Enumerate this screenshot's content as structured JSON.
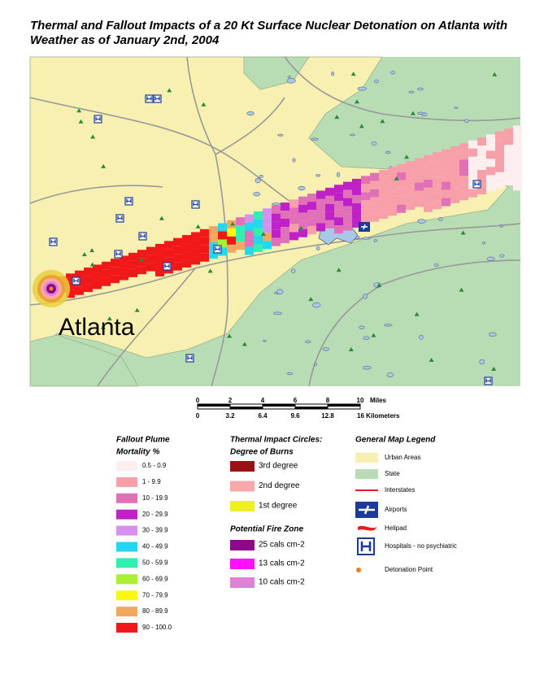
{
  "title": [
    "Thermal and Fallout Impacts of a 20 Kt Surface Nuclear Detonation on Atlanta with",
    "Weather as of January 2nd, 2004"
  ],
  "map": {
    "city_label": "Atlanta"
  },
  "scale_bar": {
    "miles": {
      "ticks": [
        0,
        2,
        4,
        6,
        8,
        10
      ],
      "unit": "Miles"
    },
    "kilometers": {
      "ticks": [
        0,
        3.2,
        6.4,
        9.6,
        12.8
      ],
      "end_label": "16 Kilometers"
    }
  },
  "legend": {
    "fallout": {
      "title": [
        "Fallout Plume",
        "Mortality %"
      ],
      "items": [
        {
          "label": "0.5 - 0.9",
          "color": "#fdeef0"
        },
        {
          "label": "1 - 9.9",
          "color": "#f8a0aa"
        },
        {
          "label": "10 - 19.9",
          "color": "#e070b8"
        },
        {
          "label": "20 - 29.9",
          "color": "#c020c8"
        },
        {
          "label": "30 - 39.9",
          "color": "#d890f0"
        },
        {
          "label": "40 - 49.9",
          "color": "#20d8f0"
        },
        {
          "label": "50 - 59.9",
          "color": "#30f0b0"
        },
        {
          "label": "60 - 69.9",
          "color": "#a8f030"
        },
        {
          "label": "70 - 79.9",
          "color": "#f8f810"
        },
        {
          "label": "80 - 89.9",
          "color": "#f0a860"
        },
        {
          "label": "90 - 100.0",
          "color": "#f01818"
        }
      ]
    },
    "thermal": {
      "title": [
        "Thermal Impact Circles:",
        "Degree of Burns"
      ],
      "items": [
        {
          "label": "3rd degree",
          "color": "#9b1010"
        },
        {
          "label": "2nd degree",
          "color": "#f8a8a8"
        },
        {
          "label": "1st degree",
          "color": "#f0f020"
        }
      ]
    },
    "fire": {
      "title": "Potential Fire Zone",
      "items": [
        {
          "label": "25 cals cm-2",
          "color": "#8b0a8b"
        },
        {
          "label": "13 cals cm-2",
          "color": "#ff10ff"
        },
        {
          "label": "10 cals cm-2",
          "color": "#e080d8"
        }
      ]
    },
    "general": {
      "title": "General Map Legend",
      "items": [
        {
          "label": "Urban Areas",
          "symbol": "swatch",
          "color": "#f8f0b0"
        },
        {
          "label": "State",
          "symbol": "swatch",
          "color": "#b8dcb4"
        },
        {
          "label": "Interstates",
          "symbol": "line",
          "color": "#e02020"
        },
        {
          "label": "Airports",
          "symbol": "airport",
          "color": "#1c3a9c"
        },
        {
          "label": "Helipad",
          "symbol": "helipad",
          "color": "#e02020"
        },
        {
          "label": "Hospitals - no psychiatric",
          "symbol": "hospital",
          "color": "#1c3a9c"
        },
        {
          "label": "Detonation Point",
          "symbol": "point",
          "color": "#f08020"
        }
      ]
    }
  }
}
